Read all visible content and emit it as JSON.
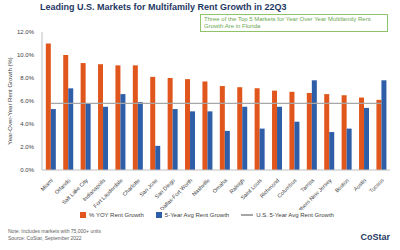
{
  "chart_data": {
    "type": "bar",
    "title": "Leading U.S. Markets for Multifamily Rent Growth in 22Q3",
    "y_label": "Year-Over-Year Rent Growth (%)",
    "annotation": "Three of the Top 5 Markets for Year Over Year Multifamily Rent Growth Are in Florida",
    "notes": [
      "Note: Includes markets with 75,000+ units",
      "Source: CoStar, September 2022"
    ],
    "logo": "CoStar",
    "categories": [
      "Miami",
      "Orlando",
      "Salt Lake City",
      "Indianapolis",
      "Fort Lauderdale",
      "Charlotte",
      "San Jose",
      "San Diego",
      "Dallas-Fort Worth",
      "Nashville",
      "Omaha",
      "Raleigh",
      "Saint Louis",
      "Richmond",
      "Columbus",
      "Tampa",
      "Northern New Jersey",
      "Boston",
      "Austin",
      "Tucson"
    ],
    "series": [
      {
        "name": "% YOY Rent Growth",
        "type": "bar",
        "color": "#e0561c",
        "values": [
          11.0,
          10.0,
          9.3,
          9.2,
          9.1,
          9.1,
          8.1,
          8.0,
          7.9,
          7.7,
          7.3,
          7.2,
          7.1,
          6.9,
          6.8,
          6.7,
          6.6,
          6.5,
          6.3,
          6.1
        ]
      },
      {
        "name": "5-Year Avg Rent Growth",
        "type": "bar",
        "color": "#2f5ea8",
        "values": [
          5.3,
          7.1,
          5.8,
          5.5,
          6.6,
          5.9,
          2.1,
          5.3,
          5.1,
          5.1,
          3.4,
          5.5,
          3.6,
          5.5,
          4.2,
          7.8,
          3.3,
          3.6,
          5.4,
          7.8
        ]
      },
      {
        "name": "U.S. 5-Year Avg Rent Growth",
        "type": "line",
        "color": "#a6a6a6",
        "values": [
          5.8,
          5.8,
          5.8,
          5.8,
          5.8,
          5.8,
          5.8,
          5.8,
          5.8,
          5.8,
          5.8,
          5.8,
          5.8,
          5.8,
          5.8,
          5.8,
          5.8,
          5.8,
          5.8,
          5.8
        ]
      }
    ],
    "ylim": [
      0,
      12
    ],
    "yticks": [
      {
        "value": 0,
        "label": "0.0%"
      },
      {
        "value": 2,
        "label": "2.0%"
      },
      {
        "value": 4,
        "label": "4.0%"
      },
      {
        "value": 6,
        "label": "6.0%"
      },
      {
        "value": 8,
        "label": "8.0%"
      },
      {
        "value": 10,
        "label": "10.0%"
      },
      {
        "value": 12,
        "label": "12.0%"
      }
    ],
    "grid": false,
    "legend": "bottom"
  }
}
